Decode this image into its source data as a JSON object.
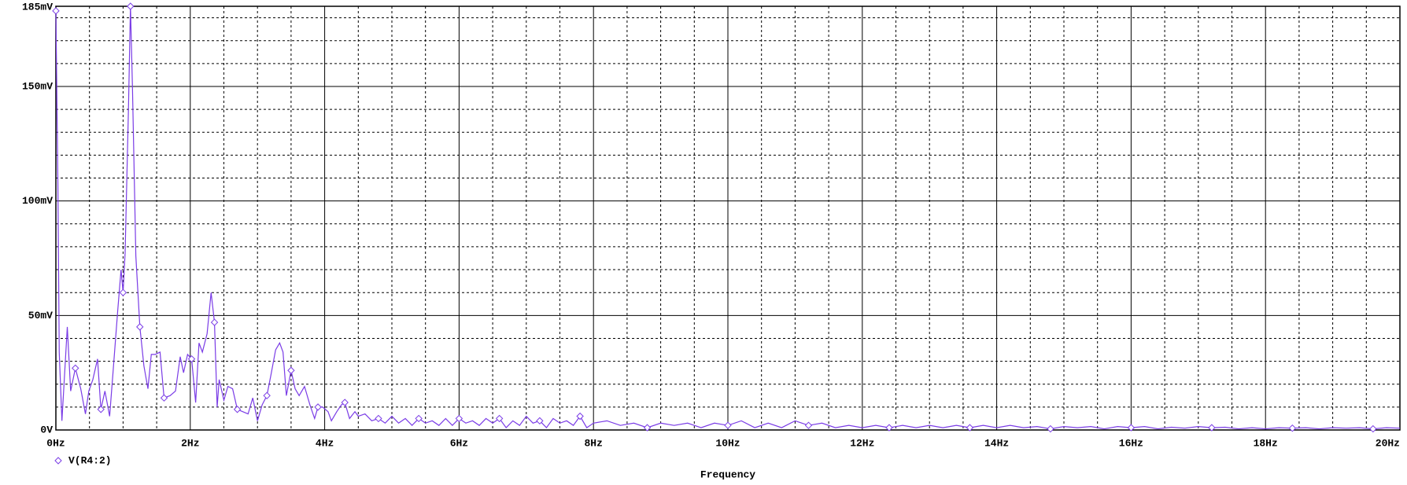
{
  "chart_data": {
    "type": "line",
    "xlabel": "Frequency",
    "x": [
      0,
      0.03,
      0.05,
      0.09,
      0.17,
      0.22,
      0.29,
      0.37,
      0.44,
      0.49,
      0.55,
      0.62,
      0.67,
      0.73,
      0.8,
      0.85,
      0.92,
      0.97,
      1.0,
      1.03,
      1.08,
      1.11,
      1.14,
      1.19,
      1.25,
      1.31,
      1.37,
      1.42,
      1.48,
      1.55,
      1.61,
      1.7,
      1.78,
      1.85,
      1.9,
      1.96,
      2.02,
      2.08,
      2.13,
      2.18,
      2.25,
      2.31,
      2.36,
      2.4,
      2.43,
      2.5,
      2.56,
      2.63,
      2.7,
      2.78,
      2.86,
      2.93,
      3.0,
      3.07,
      3.14,
      3.2,
      3.27,
      3.33,
      3.38,
      3.43,
      3.5,
      3.56,
      3.62,
      3.7,
      3.78,
      3.85,
      3.9,
      3.97,
      4.05,
      4.1,
      4.18,
      4.25,
      4.3,
      4.37,
      4.45,
      4.5,
      4.6,
      4.7,
      4.8,
      4.9,
      5.0,
      5.1,
      5.2,
      5.3,
      5.4,
      5.5,
      5.6,
      5.7,
      5.8,
      5.9,
      6.0,
      6.1,
      6.2,
      6.3,
      6.4,
      6.5,
      6.6,
      6.7,
      6.8,
      6.9,
      7.0,
      7.1,
      7.2,
      7.3,
      7.4,
      7.5,
      7.6,
      7.7,
      7.8,
      7.9,
      8.0,
      8.2,
      8.4,
      8.6,
      8.8,
      9.0,
      9.2,
      9.4,
      9.6,
      9.8,
      10.0,
      10.2,
      10.4,
      10.6,
      10.8,
      11.0,
      11.2,
      11.4,
      11.6,
      11.8,
      12.0,
      12.2,
      12.4,
      12.6,
      12.8,
      13.0,
      13.2,
      13.4,
      13.6,
      13.8,
      14.0,
      14.2,
      14.4,
      14.6,
      14.8,
      15.0,
      15.2,
      15.4,
      15.6,
      15.8,
      16.0,
      16.2,
      16.4,
      16.6,
      16.8,
      17.0,
      17.2,
      17.4,
      17.6,
      17.8,
      18.0,
      18.2,
      18.4,
      18.6,
      18.8,
      19.0,
      19.2,
      19.4,
      19.6,
      19.8,
      20.0
    ],
    "series": [
      {
        "name": "V(R4:2)",
        "color": "#7a3ce6",
        "values": [
          183,
          108,
          34,
          4,
          45,
          17,
          27,
          18,
          7,
          17,
          22,
          31,
          9,
          17,
          6,
          25,
          52,
          70,
          60,
          77,
          140,
          185,
          149,
          76,
          45,
          28,
          18,
          33,
          33,
          34,
          14,
          15,
          17,
          32,
          25,
          33,
          31,
          12,
          38,
          34,
          42,
          60,
          47,
          10,
          22,
          13,
          19,
          18,
          9,
          8,
          7,
          14,
          4,
          11,
          15,
          24,
          35,
          38,
          34,
          15,
          26,
          18,
          15,
          19,
          11,
          5,
          10,
          10,
          8,
          4,
          8,
          11,
          12,
          5,
          8,
          6,
          7,
          4,
          5,
          3,
          6,
          3,
          5,
          2,
          5,
          3,
          4,
          2,
          5,
          2,
          5,
          3,
          4,
          2,
          5,
          3,
          5,
          1,
          4,
          2,
          6,
          3,
          4,
          1,
          5,
          3,
          4,
          2,
          6,
          1,
          3,
          4,
          2,
          3,
          1,
          3,
          2,
          3,
          1,
          3,
          2,
          4,
          1,
          3,
          1,
          4,
          2,
          3,
          1,
          2,
          1,
          2,
          1,
          2,
          1,
          2,
          1,
          2,
          1,
          2,
          1,
          2,
          1,
          1.5,
          0.5,
          1.5,
          1,
          1.5,
          0.5,
          1.5,
          1,
          1.5,
          0.5,
          1.2,
          0.8,
          1.5,
          1,
          1.2,
          0.5,
          1,
          0.5,
          1,
          0.8,
          1,
          0.5,
          1,
          0.8,
          1,
          0.5,
          1,
          0.8
        ]
      }
    ],
    "xlim": [
      0,
      20
    ],
    "xticks": [
      {
        "value": 0,
        "label": "0Hz"
      },
      {
        "value": 2,
        "label": "2Hz"
      },
      {
        "value": 4,
        "label": "4Hz"
      },
      {
        "value": 6,
        "label": "6Hz"
      },
      {
        "value": 8,
        "label": "8Hz"
      },
      {
        "value": 10,
        "label": "10Hz"
      },
      {
        "value": 12,
        "label": "12Hz"
      },
      {
        "value": 14,
        "label": "14Hz"
      },
      {
        "value": 16,
        "label": "16Hz"
      },
      {
        "value": 18,
        "label": "18Hz"
      },
      {
        "value": 20,
        "label": "20Hz"
      }
    ],
    "xminorticks": [
      0.5,
      1,
      1.5,
      2.5,
      3,
      3.5,
      4.5,
      5,
      5.5,
      6.5,
      7,
      7.5,
      8.5,
      9,
      9.5,
      10.5,
      11,
      11.5,
      12.5,
      13,
      13.5,
      14.5,
      15,
      15.5,
      16.5,
      17,
      17.5,
      18.5,
      19,
      19.5
    ],
    "ylim": [
      0,
      185
    ],
    "yticks": [
      {
        "value": 0,
        "label": "0V"
      },
      {
        "value": 50,
        "label": "50mV"
      },
      {
        "value": 100,
        "label": "100mV"
      },
      {
        "value": 150,
        "label": "150mV"
      },
      {
        "value": 185,
        "label": "185mV"
      }
    ],
    "yminorticks": [
      10,
      20,
      30,
      40,
      60,
      70,
      80,
      90,
      110,
      120,
      130,
      140,
      160,
      170,
      180
    ],
    "grid": true
  }
}
